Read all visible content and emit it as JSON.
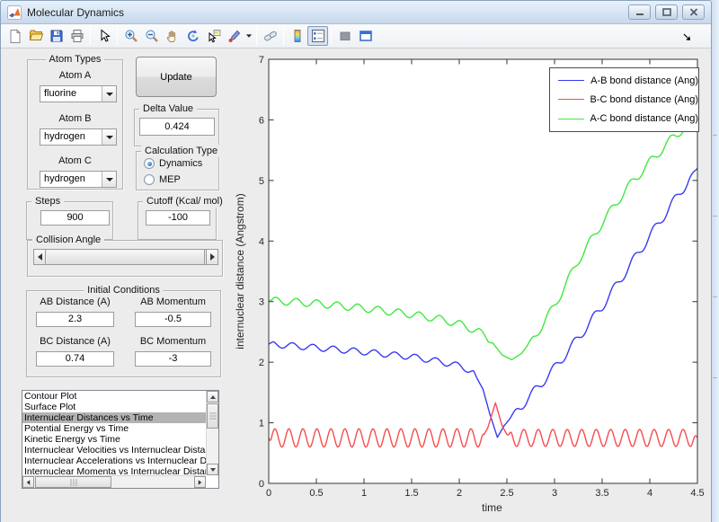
{
  "window": {
    "title": "Molecular Dynamics",
    "controls": [
      "minimize",
      "maximize",
      "close"
    ]
  },
  "toolbar": {
    "icons": [
      "new-figure",
      "open-file",
      "save-figure",
      "print-figure",
      "edit-plot-arrow",
      "zoom-in",
      "zoom-out",
      "pan-hand",
      "rotate-3d",
      "data-cursor",
      "brush-data",
      "brush-dropdown-caret",
      "link-plot",
      "insert-colorbar",
      "insert-legend",
      "hide-plot-tools",
      "show-plot-tools-dock",
      "toolbar-overflow"
    ],
    "pressed": "insert-legend"
  },
  "panels": {
    "atom_types": {
      "title": "Atom Types",
      "fields": [
        {
          "label": "Atom A",
          "value": "fluorine"
        },
        {
          "label": "Atom B",
          "value": "hydrogen"
        },
        {
          "label": "Atom C",
          "value": "hydrogen"
        }
      ]
    },
    "update_button": "Update",
    "delta": {
      "title": "Delta Value",
      "value": "0.424"
    },
    "calculation_type": {
      "title": "Calculation Type",
      "options": [
        {
          "label": "Dynamics",
          "selected": true
        },
        {
          "label": "MEP",
          "selected": false
        }
      ]
    },
    "steps": {
      "title": "Steps",
      "value": "900"
    },
    "cutoff": {
      "title": "Cutoff (Kcal/ mol)",
      "value": "-100"
    },
    "collision": {
      "title": "Collision Angle"
    },
    "initial": {
      "title": "Initial Conditions",
      "fields": [
        {
          "label": "AB Distance (A)",
          "value": "2.3"
        },
        {
          "label": "AB Momentum",
          "value": "-0.5"
        },
        {
          "label": "BC Distance (A)",
          "value": "0.74"
        },
        {
          "label": "BC Momentum",
          "value": "-3"
        }
      ]
    }
  },
  "listbox": {
    "selected_index": 2,
    "items": [
      "Contour Plot",
      "Surface Plot",
      "Internuclear Distances vs Time",
      "Potential Energy vs Time",
      "Kinetic Energy vs Time",
      "Internuclear Velocities vs Internuclear Distance",
      "Internuclear Accelerations vs Internuclear Dista",
      "Internuclear Momenta vs Internuclear Distance"
    ]
  },
  "chart_data": {
    "type": "line",
    "xlabel": "time",
    "ylabel": "internuclear distance (Angstrom)",
    "xlim": [
      0,
      4.5
    ],
    "ylim": [
      0,
      7
    ],
    "xticks": [
      "0",
      "0.5",
      "1",
      "1.5",
      "2",
      "2.5",
      "3",
      "3.5",
      "4",
      "4.5"
    ],
    "yticks": [
      "0",
      "1",
      "2",
      "3",
      "4",
      "5",
      "6",
      "7"
    ],
    "grid": false,
    "legend_position": "northeast",
    "series": [
      {
        "name": "A-B bond distance (Ang)",
        "color": "#3a3af2",
        "baseline": [
          [
            0,
            2.3
          ],
          [
            0.5,
            2.24
          ],
          [
            1.0,
            2.17
          ],
          [
            1.5,
            2.09
          ],
          [
            1.8,
            2.01
          ],
          [
            2.0,
            1.94
          ],
          [
            2.15,
            1.84
          ],
          [
            2.25,
            1.55
          ],
          [
            2.32,
            1.15
          ],
          [
            2.4,
            0.76
          ],
          [
            2.47,
            0.95
          ],
          [
            2.55,
            1.1
          ],
          [
            2.75,
            1.45
          ],
          [
            3.0,
            1.9
          ],
          [
            3.25,
            2.4
          ],
          [
            3.5,
            2.92
          ],
          [
            3.75,
            3.5
          ],
          [
            4.0,
            4.08
          ],
          [
            4.25,
            4.65
          ],
          [
            4.5,
            5.2
          ]
        ],
        "oscillations": [
          {
            "t0": 0,
            "t1": 2.18,
            "amp": 0.05,
            "period": 0.215,
            "phase": 0.6,
            "ramp": 0.05
          },
          {
            "t0": 2.52,
            "t1": 4.5,
            "amp": 0.075,
            "period": 0.21,
            "phase": 0,
            "ramp": 0.1
          }
        ]
      },
      {
        "name": "B-C bond distance (Ang)",
        "color": "#f54c4c",
        "baseline": [
          [
            0,
            0.75
          ],
          [
            2.24,
            0.75
          ],
          [
            2.3,
            0.92
          ],
          [
            2.38,
            1.33
          ],
          [
            2.45,
            0.95
          ],
          [
            2.52,
            0.75
          ],
          [
            4.5,
            0.75
          ]
        ],
        "oscillations": [
          {
            "t0": 0,
            "t1": 2.26,
            "amp": 0.15,
            "period": 0.147,
            "phase": -1.2,
            "ramp": 0.03
          },
          {
            "t0": 2.5,
            "t1": 4.5,
            "amp": 0.14,
            "period": 0.152,
            "phase": 0.5,
            "ramp": 0.05
          }
        ]
      },
      {
        "name": "A-C bond distance (Ang)",
        "color": "#3fe83f",
        "baseline": [
          [
            0,
            3.02
          ],
          [
            0.5,
            2.97
          ],
          [
            1.0,
            2.89
          ],
          [
            1.5,
            2.79
          ],
          [
            1.8,
            2.71
          ],
          [
            2.0,
            2.63
          ],
          [
            2.2,
            2.51
          ],
          [
            2.35,
            2.32
          ],
          [
            2.45,
            2.12
          ],
          [
            2.55,
            2.04
          ],
          [
            2.65,
            2.14
          ],
          [
            2.8,
            2.44
          ],
          [
            3.0,
            2.93
          ],
          [
            3.25,
            3.68
          ],
          [
            3.5,
            4.3
          ],
          [
            3.75,
            4.85
          ],
          [
            4.0,
            5.3
          ],
          [
            4.25,
            5.72
          ],
          [
            4.5,
            6.05
          ]
        ],
        "oscillations": [
          {
            "t0": 0,
            "t1": 2.35,
            "amp": 0.06,
            "period": 0.215,
            "phase": -0.6,
            "ramp": 0.05
          },
          {
            "t0": 2.7,
            "t1": 4.5,
            "amp": 0.07,
            "period": 0.21,
            "phase": 0.3,
            "ramp": 0.1
          }
        ]
      }
    ]
  }
}
